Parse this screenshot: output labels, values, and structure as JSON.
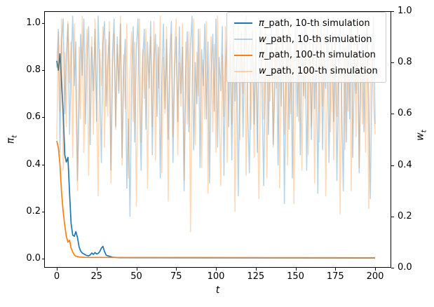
{
  "figure": {
    "xlabel": "t",
    "ylabel_left": {
      "symbol": "π",
      "sub": "t"
    },
    "ylabel_right": {
      "symbol": "w",
      "sub": "t"
    },
    "xtick_labels": [
      "0",
      "25",
      "50",
      "75",
      "100",
      "125",
      "150",
      "175",
      "200"
    ],
    "ytick_labels_left": [
      "0.0",
      "0.2",
      "0.4",
      "0.6",
      "0.8",
      "1.0"
    ],
    "ytick_labels_right": [
      "0.0",
      "0.2",
      "0.4",
      "0.6",
      "0.8",
      "1.0"
    ],
    "colors": {
      "blue": "#1f77b4",
      "orange": "#ff7f0e",
      "spine": "#000000",
      "legend_border": "#cccccc"
    }
  },
  "chart_data": {
    "type": "line",
    "xlabel": "t",
    "ylabel_left": "π_t",
    "ylabel_right": "w_t",
    "xlim": [
      -8,
      210
    ],
    "ylim_left": [
      -0.04,
      1.05
    ],
    "ylim_right": [
      0.0,
      1.0
    ],
    "x_ticks": [
      0,
      25,
      50,
      75,
      100,
      125,
      150,
      175,
      200
    ],
    "y_ticks_left": [
      0.0,
      0.2,
      0.4,
      0.6,
      0.8,
      1.0
    ],
    "y_ticks_right": [
      0.0,
      0.2,
      0.4,
      0.6,
      0.8,
      1.0
    ],
    "grid": false,
    "legend_position": "upper right",
    "legend": [
      {
        "symbol": "π",
        "rest": "_path, 10-th simulation",
        "color": "#1f77b4",
        "alpha": 1
      },
      {
        "symbol": "w",
        "rest": "_path, 10-th simulation",
        "color": "#1f77b4",
        "alpha": 0.32
      },
      {
        "symbol": "π",
        "rest": "_path, 100-th simulation",
        "color": "#ff7f0e",
        "alpha": 1
      },
      {
        "symbol": "w",
        "rest": "_path, 100-th simulation",
        "color": "#ff7f0e",
        "alpha": 0.3
      }
    ],
    "series": [
      {
        "name": "π_path, 10-th simulation",
        "axis": "left",
        "color": "#1f77b4",
        "alpha": 1.0,
        "linewidth": 1.7,
        "points": [
          [
            0,
            0.84
          ],
          [
            1,
            0.8
          ],
          [
            2,
            0.87
          ],
          [
            3,
            0.75
          ],
          [
            4,
            0.62
          ],
          [
            5,
            0.44
          ],
          [
            6,
            0.41
          ],
          [
            7,
            0.43
          ],
          [
            8,
            0.28
          ],
          [
            9,
            0.15
          ],
          [
            10,
            0.1
          ],
          [
            11,
            0.095
          ],
          [
            12,
            0.115
          ],
          [
            13,
            0.09
          ],
          [
            14,
            0.05
          ],
          [
            15,
            0.032
          ],
          [
            16,
            0.024
          ],
          [
            17,
            0.02
          ],
          [
            18,
            0.016
          ],
          [
            19,
            0.013
          ],
          [
            20,
            0.012
          ],
          [
            21,
            0.016
          ],
          [
            22,
            0.024
          ],
          [
            23,
            0.018
          ],
          [
            24,
            0.026
          ],
          [
            25,
            0.02
          ],
          [
            26,
            0.022
          ],
          [
            27,
            0.03
          ],
          [
            28,
            0.045
          ],
          [
            29,
            0.052
          ],
          [
            30,
            0.03
          ],
          [
            31,
            0.015
          ],
          [
            32,
            0.012
          ],
          [
            33,
            0.01
          ],
          [
            34,
            0.008
          ],
          [
            35,
            0.006
          ],
          [
            40,
            0.004
          ],
          [
            200,
            0.003
          ]
        ]
      },
      {
        "name": "w_path, 10-th simulation",
        "axis": "right",
        "color": "#1f77b4",
        "alpha": 0.32,
        "linewidth": 1.5,
        "x_start": 0,
        "x_step": 1,
        "values": [
          0.78,
          0.93,
          0.45,
          0.88,
          0.97,
          0.6,
          0.83,
          0.95,
          0.52,
          0.78,
          0.98,
          0.71,
          0.88,
          0.34,
          0.62,
          0.91,
          0.75,
          0.97,
          0.56,
          0.81,
          0.94,
          0.48,
          0.86,
          0.69,
          0.93,
          0.57,
          0.98,
          0.74,
          0.41,
          0.87,
          0.96,
          0.63,
          0.79,
          0.92,
          0.38,
          0.84,
          0.97,
          0.55,
          0.9,
          0.68,
          0.95,
          0.43,
          0.76,
          0.89,
          0.31,
          0.58,
          0.2,
          0.72,
          0.94,
          0.49,
          0.85,
          0.97,
          0.66,
          0.38,
          0.81,
          0.93,
          0.54,
          0.88,
          0.7,
          0.96,
          0.44,
          0.79,
          0.91,
          0.59,
          0.86,
          0.35,
          0.73,
          0.95,
          0.62,
          0.89,
          0.5,
          0.83,
          0.96,
          0.41,
          0.77,
          0.9,
          0.57,
          0.94,
          0.68,
          0.86,
          0.3,
          0.75,
          0.92,
          0.53,
          0.87,
          0.98,
          0.46,
          0.8,
          0.64,
          0.93,
          0.39,
          0.85,
          0.71,
          0.95,
          0.58,
          0.88,
          0.33,
          0.76,
          0.91,
          0.61,
          0.97,
          0.47,
          0.82,
          0.69,
          0.94,
          0.36,
          0.78,
          0.9,
          0.55,
          0.87,
          0.42,
          0.96,
          0.65,
          0.84,
          0.28,
          0.74,
          0.92,
          0.51,
          0.86,
          0.98,
          0.6,
          0.37,
          0.8,
          0.93,
          0.56,
          0.89,
          0.45,
          0.83,
          0.97,
          0.67,
          0.32,
          0.77,
          0.91,
          0.52,
          0.85,
          0.96,
          0.48,
          0.7,
          0.94,
          0.4,
          0.86,
          0.63,
          0.98,
          0.25,
          0.72,
          0.9,
          0.54,
          0.88,
          0.35,
          0.79,
          0.95,
          0.59,
          0.84,
          0.44,
          0.92,
          0.67,
          0.97,
          0.38,
          0.75,
          0.89,
          0.5,
          0.93,
          0.62,
          0.87,
          0.29,
          0.81,
          0.96,
          0.46,
          0.84,
          0.7,
          0.98,
          0.41,
          0.78,
          0.92,
          0.57,
          0.88,
          0.34,
          0.73,
          0.95,
          0.65,
          0.3,
          0.86,
          0.49,
          0.91,
          0.58,
          0.97,
          0.43,
          0.82,
          0.68,
          0.94,
          0.37,
          0.8,
          0.9,
          0.53,
          0.85,
          0.96,
          0.61,
          0.27,
          0.74,
          0.98,
          0.56
        ]
      },
      {
        "name": "π_path, 100-th simulation",
        "axis": "left",
        "color": "#ff7f0e",
        "alpha": 1.0,
        "linewidth": 1.7,
        "points": [
          [
            0,
            0.5
          ],
          [
            1,
            0.47
          ],
          [
            2,
            0.4
          ],
          [
            3,
            0.28
          ],
          [
            4,
            0.2
          ],
          [
            5,
            0.14
          ],
          [
            6,
            0.095
          ],
          [
            7,
            0.07
          ],
          [
            8,
            0.078
          ],
          [
            9,
            0.045
          ],
          [
            10,
            0.028
          ],
          [
            11,
            0.016
          ],
          [
            12,
            0.01
          ],
          [
            14,
            0.007
          ],
          [
            18,
            0.005
          ],
          [
            200,
            0.004
          ]
        ]
      },
      {
        "name": "w_path, 100-th simulation",
        "axis": "right",
        "color": "#ff7f0e",
        "alpha": 0.3,
        "linewidth": 1.5,
        "x_start": 0,
        "x_step": 1,
        "values": [
          0.5,
          0.92,
          0.61,
          0.97,
          0.38,
          0.84,
          0.55,
          0.96,
          0.72,
          0.88,
          0.43,
          0.95,
          0.67,
          0.3,
          0.86,
          0.58,
          0.98,
          0.45,
          0.81,
          0.93,
          0.36,
          0.77,
          0.9,
          0.52,
          0.97,
          0.64,
          0.28,
          0.85,
          0.71,
          0.94,
          0.47,
          0.89,
          0.59,
          0.96,
          0.33,
          0.78,
          0.91,
          0.54,
          0.87,
          0.69,
          0.98,
          0.4,
          0.83,
          0.62,
          0.95,
          0.35,
          0.76,
          0.92,
          0.57,
          0.88,
          0.24,
          0.73,
          0.97,
          0.49,
          0.85,
          0.66,
          0.93,
          0.31,
          0.79,
          0.9,
          0.55,
          0.96,
          0.42,
          0.87,
          0.7,
          0.98,
          0.37,
          0.82,
          0.6,
          0.94,
          0.26,
          0.75,
          0.91,
          0.51,
          0.86,
          0.97,
          0.44,
          0.8,
          0.63,
          0.95,
          0.34,
          0.88,
          0.56,
          0.92,
          0.14,
          0.71,
          0.97,
          0.48,
          0.84,
          0.67,
          0.93,
          0.39,
          0.81,
          0.58,
          0.96,
          0.29,
          0.77,
          0.9,
          0.53,
          0.87,
          0.45,
          0.98,
          0.64,
          0.32,
          0.83,
          0.59,
          0.94,
          0.41,
          0.79,
          0.92,
          0.56,
          0.88,
          0.22,
          0.74,
          0.96,
          0.5,
          0.85,
          0.68,
          0.97,
          0.36,
          0.8,
          0.91,
          0.54,
          0.89,
          0.43,
          0.95,
          0.62,
          0.27,
          0.76,
          0.93,
          0.58,
          0.98,
          0.35,
          0.82,
          0.65,
          0.9,
          0.47,
          0.86,
          0.7,
          0.96,
          0.31,
          0.78,
          0.92,
          0.52,
          0.87,
          0.4,
          0.97,
          0.6,
          0.84,
          0.25,
          0.73,
          0.94,
          0.57,
          0.89,
          0.38,
          0.81,
          0.66,
          0.98,
          0.44,
          0.85,
          0.55,
          0.91,
          0.33,
          0.76,
          0.95,
          0.49,
          0.88,
          0.63,
          0.96,
          0.28,
          0.74,
          0.9,
          0.53,
          0.86,
          0.42,
          0.97,
          0.59,
          0.82,
          0.21,
          0.7,
          0.93,
          0.46,
          0.87,
          0.61,
          0.95,
          0.3,
          0.77,
          0.89,
          0.51,
          0.98,
          0.39,
          0.83,
          0.56,
          0.92,
          0.45,
          0.96,
          0.23,
          0.72,
          0.88,
          0.64,
          0.52
        ]
      }
    ]
  }
}
